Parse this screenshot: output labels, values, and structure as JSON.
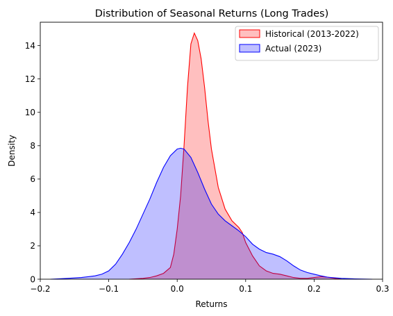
{
  "chart_data": {
    "type": "area",
    "title": "Distribution of Seasonal Returns (Long Trades)",
    "xlabel": "Returns",
    "ylabel": "Density",
    "xlim": [
      -0.2,
      0.3
    ],
    "ylim": [
      0,
      15.4
    ],
    "x_ticks": [
      -0.2,
      -0.1,
      0.0,
      0.1,
      0.2,
      0.3
    ],
    "x_tick_labels": [
      "−0.2",
      "−0.1",
      "0.0",
      "0.1",
      "0.2",
      "0.3"
    ],
    "y_ticks": [
      0,
      2,
      4,
      6,
      8,
      10,
      12,
      14
    ],
    "y_tick_labels": [
      "0",
      "2",
      "4",
      "6",
      "8",
      "10",
      "12",
      "14"
    ],
    "grid": false,
    "legend_position": "top-right",
    "series": [
      {
        "name": "Historical (2013-2022)",
        "stroke": "#ff0000",
        "fill": "#ff0000",
        "fill_opacity": 0.25,
        "points": [
          [
            -0.07,
            0.0
          ],
          [
            -0.05,
            0.05
          ],
          [
            -0.04,
            0.1
          ],
          [
            -0.03,
            0.2
          ],
          [
            -0.02,
            0.35
          ],
          [
            -0.01,
            0.7
          ],
          [
            -0.005,
            1.5
          ],
          [
            0.0,
            3.0
          ],
          [
            0.005,
            5.0
          ],
          [
            0.01,
            8.0
          ],
          [
            0.015,
            11.5
          ],
          [
            0.02,
            14.1
          ],
          [
            0.025,
            14.75
          ],
          [
            0.03,
            14.3
          ],
          [
            0.035,
            13.2
          ],
          [
            0.04,
            11.5
          ],
          [
            0.045,
            9.5
          ],
          [
            0.05,
            7.8
          ],
          [
            0.06,
            5.5
          ],
          [
            0.07,
            4.2
          ],
          [
            0.08,
            3.5
          ],
          [
            0.09,
            3.1
          ],
          [
            0.095,
            2.8
          ],
          [
            0.1,
            2.2
          ],
          [
            0.11,
            1.4
          ],
          [
            0.12,
            0.8
          ],
          [
            0.13,
            0.5
          ],
          [
            0.14,
            0.35
          ],
          [
            0.15,
            0.3
          ],
          [
            0.16,
            0.2
          ],
          [
            0.17,
            0.1
          ],
          [
            0.18,
            0.05
          ],
          [
            0.19,
            0.05
          ],
          [
            0.2,
            0.1
          ],
          [
            0.21,
            0.15
          ],
          [
            0.22,
            0.12
          ],
          [
            0.23,
            0.05
          ],
          [
            0.24,
            0.0
          ]
        ]
      },
      {
        "name": "Actual (2023)",
        "stroke": "#0000ff",
        "fill": "#0000ff",
        "fill_opacity": 0.25,
        "points": [
          [
            -0.185,
            0.0
          ],
          [
            -0.16,
            0.05
          ],
          [
            -0.14,
            0.1
          ],
          [
            -0.12,
            0.2
          ],
          [
            -0.11,
            0.3
          ],
          [
            -0.1,
            0.5
          ],
          [
            -0.09,
            0.9
          ],
          [
            -0.08,
            1.5
          ],
          [
            -0.07,
            2.2
          ],
          [
            -0.06,
            3.0
          ],
          [
            -0.05,
            3.9
          ],
          [
            -0.04,
            4.8
          ],
          [
            -0.03,
            5.8
          ],
          [
            -0.02,
            6.7
          ],
          [
            -0.01,
            7.4
          ],
          [
            0.0,
            7.8
          ],
          [
            0.005,
            7.85
          ],
          [
            0.01,
            7.8
          ],
          [
            0.02,
            7.3
          ],
          [
            0.03,
            6.4
          ],
          [
            0.04,
            5.4
          ],
          [
            0.05,
            4.5
          ],
          [
            0.06,
            3.9
          ],
          [
            0.07,
            3.5
          ],
          [
            0.08,
            3.2
          ],
          [
            0.09,
            2.9
          ],
          [
            0.1,
            2.55
          ],
          [
            0.11,
            2.1
          ],
          [
            0.12,
            1.8
          ],
          [
            0.13,
            1.6
          ],
          [
            0.14,
            1.5
          ],
          [
            0.15,
            1.35
          ],
          [
            0.16,
            1.1
          ],
          [
            0.17,
            0.8
          ],
          [
            0.18,
            0.55
          ],
          [
            0.19,
            0.4
          ],
          [
            0.2,
            0.3
          ],
          [
            0.21,
            0.2
          ],
          [
            0.22,
            0.12
          ],
          [
            0.24,
            0.05
          ],
          [
            0.26,
            0.02
          ],
          [
            0.285,
            0.0
          ]
        ]
      }
    ]
  }
}
